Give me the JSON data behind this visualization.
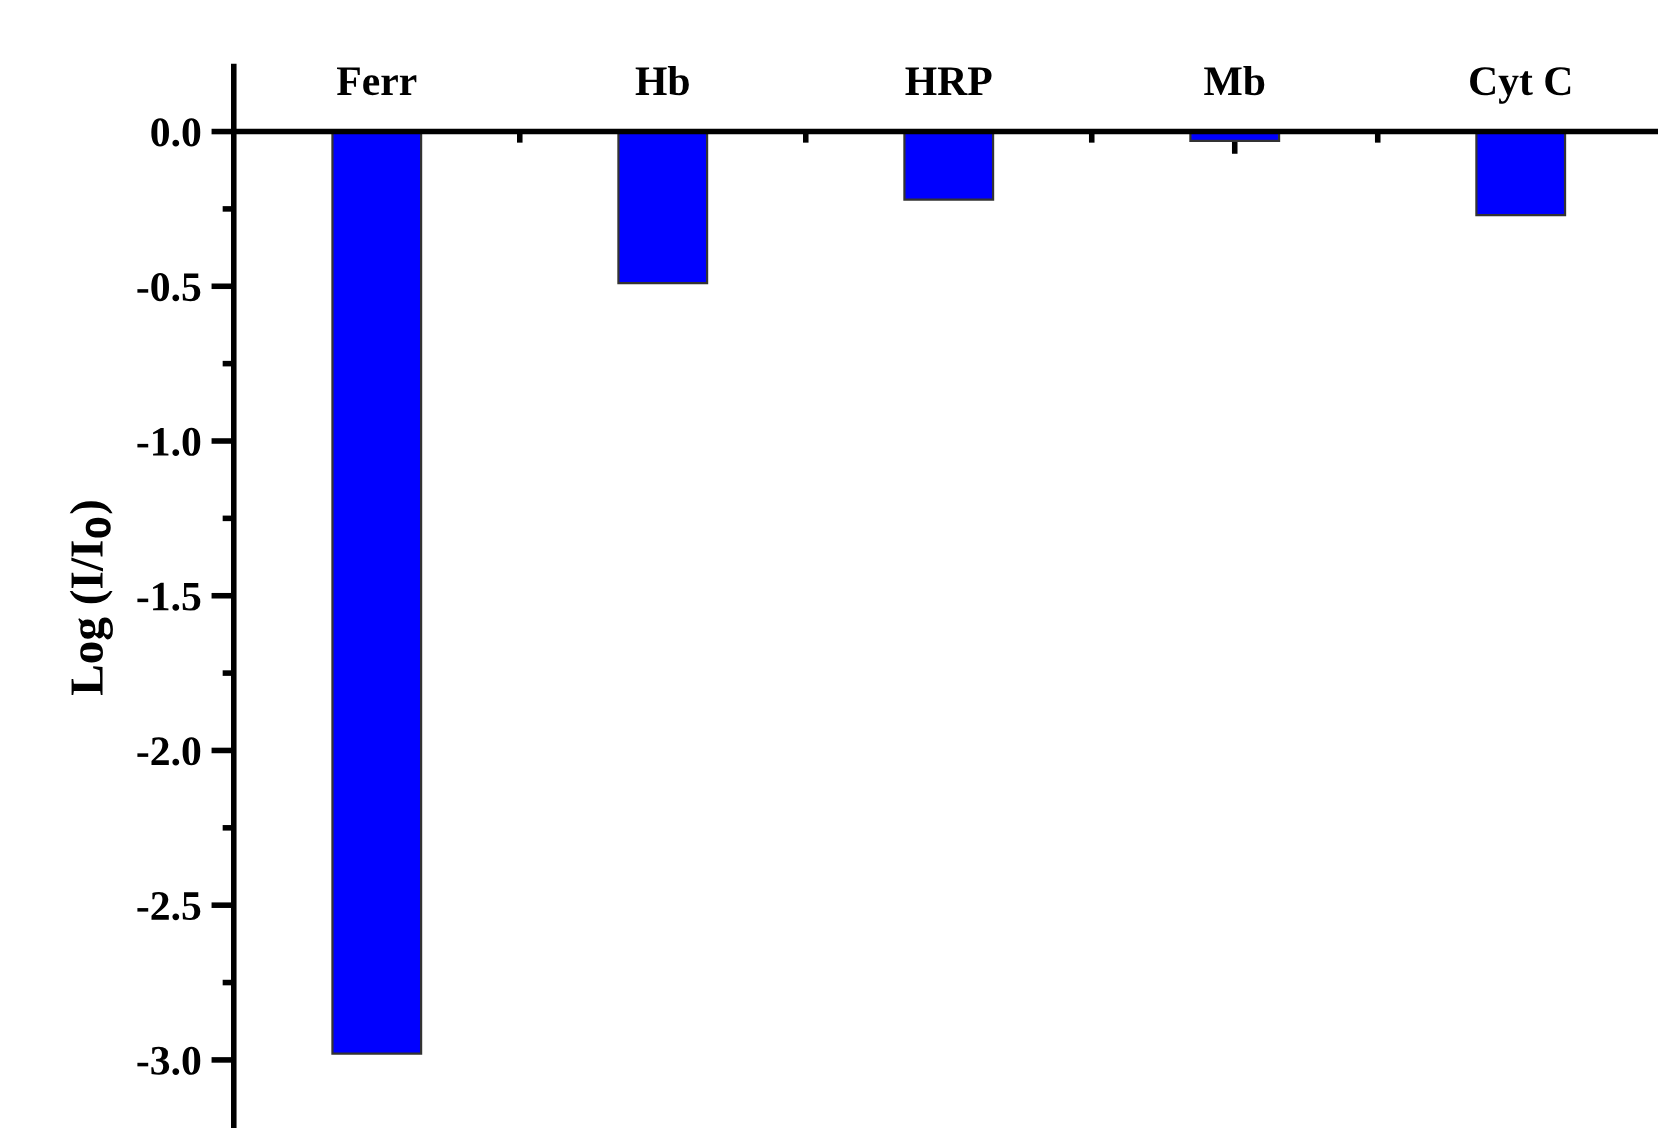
{
  "chart_data": {
    "type": "bar",
    "ylabel": "Log (I/I$_{0}$)",
    "categories": [
      "Ferr",
      "Hb",
      "HRP",
      "Mb",
      "Cyt C"
    ],
    "values": [
      -2.98,
      -0.49,
      -0.22,
      -0.03,
      -0.27
    ],
    "color": "#0000ff",
    "ylim": [
      -3.22,
      0.21
    ],
    "yticks": [
      {
        "value": 0,
        "label": "0.0"
      },
      {
        "value": -0.5,
        "label": "-0.5"
      },
      {
        "value": -1,
        "label": "-1.0"
      },
      {
        "value": -1.5,
        "label": "-1.5"
      },
      {
        "value": -2,
        "label": "-2.0"
      },
      {
        "value": -2.5,
        "label": "-2.5"
      },
      {
        "value": -3,
        "label": "-3.0"
      }
    ],
    "grid": false,
    "legend": false
  }
}
